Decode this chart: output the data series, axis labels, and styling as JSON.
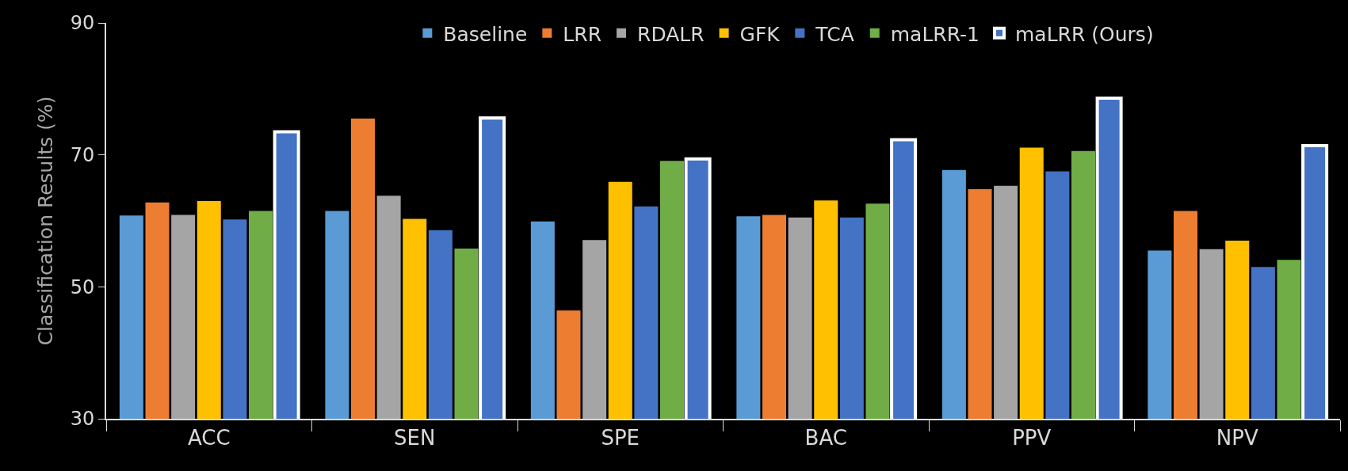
{
  "chart_data": {
    "type": "bar",
    "ylabel": "Classification Results (%)",
    "categories": [
      "ACC",
      "SEN",
      "SPE",
      "BAC",
      "PPV",
      "NPV"
    ],
    "series": [
      {
        "name": "Baseline",
        "color": "#5b9bd5",
        "values": [
          60.8,
          61.5,
          59.9,
          60.7,
          67.7,
          55.5
        ]
      },
      {
        "name": "LRR",
        "color": "#ed7d31",
        "values": [
          62.8,
          75.5,
          46.4,
          60.9,
          64.8,
          61.5
        ]
      },
      {
        "name": "RDALR",
        "color": "#a5a5a5",
        "values": [
          60.9,
          63.8,
          57.1,
          60.5,
          65.3,
          55.7
        ]
      },
      {
        "name": "GFK",
        "color": "#ffc000",
        "values": [
          63.0,
          60.3,
          65.9,
          63.1,
          71.1,
          57.0
        ]
      },
      {
        "name": "TCA",
        "color": "#4472c4",
        "values": [
          60.2,
          58.6,
          62.2,
          60.5,
          67.5,
          53.0
        ]
      },
      {
        "name": "maLRR-1",
        "color": "#70ad47",
        "values": [
          61.5,
          55.8,
          69.1,
          62.6,
          70.6,
          54.1
        ]
      },
      {
        "name": "maLRR (Ours)",
        "color": "#4472c4",
        "values": [
          73.5,
          75.6,
          69.4,
          72.3,
          78.6,
          71.4
        ]
      }
    ],
    "ylim": [
      30,
      90
    ],
    "yticks": [
      30,
      50,
      70,
      90
    ],
    "grid": false,
    "legend": "top"
  }
}
